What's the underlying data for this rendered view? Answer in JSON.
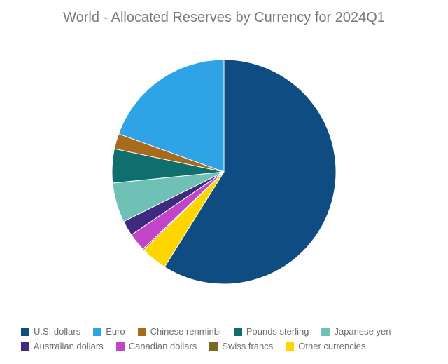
{
  "chart": {
    "type": "pie",
    "title": "World - Allocated Reserves by Currency for 2024Q1",
    "title_color": "#7a7a7a",
    "title_fontsize": 20,
    "background_color": "#ffffff",
    "radius": 160,
    "start_angle_deg": -90,
    "direction": "clockwise",
    "legend_text_color": "#6f6f6f",
    "legend_fontsize": 13,
    "slices": [
      {
        "label": "U.S. dollars",
        "value": 58.9,
        "color": "#0f4c81"
      },
      {
        "label": "Other currencies",
        "value": 3.8,
        "color": "#ffd500"
      },
      {
        "label": "Swiss francs",
        "value": 0.2,
        "color": "#7a6a1f"
      },
      {
        "label": "Canadian dollars",
        "value": 2.6,
        "color": "#c244c9"
      },
      {
        "label": "Australian dollars",
        "value": 2.2,
        "color": "#3f2a80"
      },
      {
        "label": "Japanese yen",
        "value": 5.7,
        "color": "#6fc1b6"
      },
      {
        "label": "Pounds sterling",
        "value": 4.9,
        "color": "#0f6e6e"
      },
      {
        "label": "Chinese renminbi",
        "value": 2.2,
        "color": "#a86b1c"
      },
      {
        "label": "Euro",
        "value": 19.5,
        "color": "#2ea3e6"
      }
    ],
    "legend_order": [
      "U.S. dollars",
      "Euro",
      "Chinese renminbi",
      "Pounds sterling",
      "Japanese yen",
      "Australian dollars",
      "Canadian dollars",
      "Swiss francs",
      "Other currencies"
    ]
  }
}
